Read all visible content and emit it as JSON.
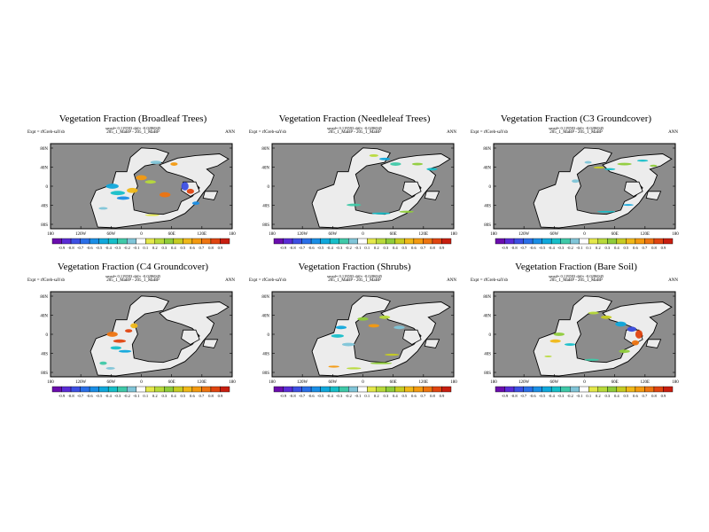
{
  "figure": {
    "season": "ANN",
    "expt_label": "Expt = rfGreb-saYsb",
    "run_label": "205_1_MaBP - 205_1_MaBP",
    "stats_line": "xmed= 0.119593 diff= -0.0286945"
  },
  "lat_ticks": [
    "80N",
    "40N",
    "0",
    "40S",
    "80S"
  ],
  "lon_ticks": [
    "180",
    "120W",
    "60W",
    "0",
    "60E",
    "120E",
    "180"
  ],
  "colorbar_ticks": [
    "-0.9",
    "-0.8",
    "-0.7",
    "-0.6",
    "-0.5",
    "-0.4",
    "-0.3",
    "-0.2",
    "-0.1",
    "0.1",
    "0.2",
    "0.3",
    "0.4",
    "0.5",
    "0.6",
    "0.7",
    "0.8",
    "0.9"
  ],
  "colors": {
    "ocean": "#8c8c8c",
    "land": "#ececec",
    "scale": [
      "#6a0dad",
      "#5a2cd6",
      "#3d4fe3",
      "#2a6fe8",
      "#1a8ee6",
      "#10a8dc",
      "#16bfc9",
      "#3fc9a8",
      "#80c5d8",
      "#ffffff",
      "#e4e84a",
      "#b8da3a",
      "#8fcc3a",
      "#c6cc22",
      "#f0b818",
      "#f49a10",
      "#ee7410",
      "#e04410",
      "#c81e10"
    ]
  },
  "chart_data": [
    {
      "type": "heatmap",
      "title": "Vegetation Fraction (Broadleaf Trees)",
      "xlabel": "",
      "ylabel": "",
      "xlim": [
        -180,
        180
      ],
      "ylim": [
        -90,
        90
      ],
      "clim": [
        -0.9,
        0.9
      ]
    },
    {
      "type": "heatmap",
      "title": "Vegetation Fraction (Needleleaf Trees)",
      "xlabel": "",
      "ylabel": "",
      "xlim": [
        -180,
        180
      ],
      "ylim": [
        -90,
        90
      ],
      "clim": [
        -0.9,
        0.9
      ]
    },
    {
      "type": "heatmap",
      "title": "Vegetation Fraction (C3 Groundcover)",
      "xlabel": "",
      "ylabel": "",
      "xlim": [
        -180,
        180
      ],
      "ylim": [
        -90,
        90
      ],
      "clim": [
        -0.9,
        0.9
      ]
    },
    {
      "type": "heatmap",
      "title": "Vegetation Fraction (C4 Groundcover)",
      "xlabel": "",
      "ylabel": "",
      "xlim": [
        -180,
        180
      ],
      "ylim": [
        -90,
        90
      ],
      "clim": [
        -0.9,
        0.9
      ]
    },
    {
      "type": "heatmap",
      "title": "Vegetation Fraction (Shrubs)",
      "xlabel": "",
      "ylabel": "",
      "xlim": [
        -180,
        180
      ],
      "ylim": [
        -90,
        90
      ],
      "clim": [
        -0.9,
        0.9
      ]
    },
    {
      "type": "heatmap",
      "title": "Vegetation Fraction (Bare Soil)",
      "xlabel": "",
      "ylabel": "",
      "xlim": [
        -180,
        180
      ],
      "ylim": [
        -90,
        90
      ],
      "clim": [
        -0.9,
        0.9
      ]
    }
  ]
}
